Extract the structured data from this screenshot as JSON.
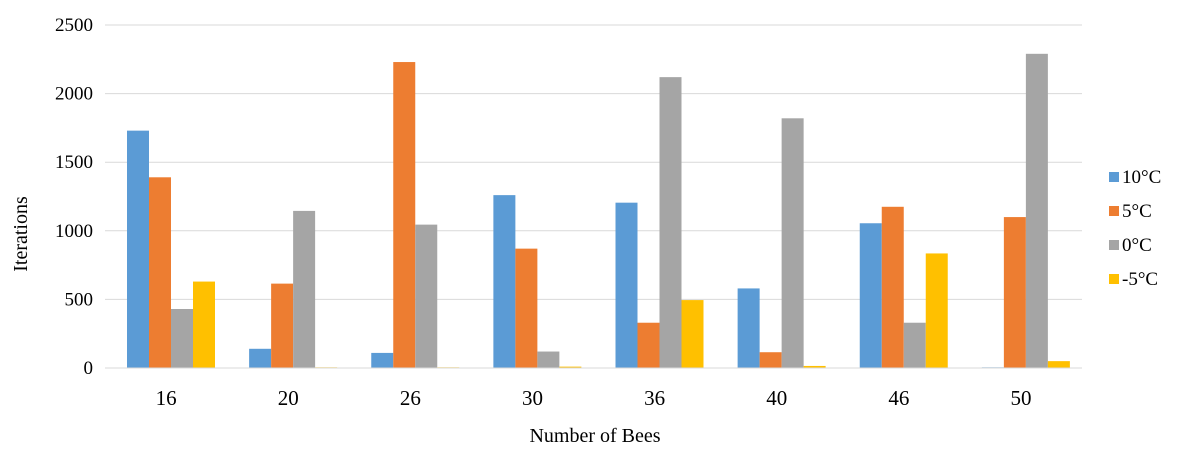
{
  "chart_data": {
    "type": "bar",
    "title": "",
    "xlabel": "Number of Bees",
    "ylabel": "Iterations",
    "categories": [
      "16",
      "20",
      "26",
      "30",
      "36",
      "40",
      "46",
      "50"
    ],
    "ylim": [
      0,
      2500
    ],
    "yticks": [
      0,
      500,
      1000,
      1500,
      2000,
      2500
    ],
    "grid": true,
    "legend_position": "right",
    "series": [
      {
        "name": "10°C",
        "color": "#5B9BD5",
        "values": [
          1730,
          140,
          110,
          1260,
          1205,
          580,
          1055,
          5
        ]
      },
      {
        "name": "5°C",
        "color": "#ED7D31",
        "values": [
          1390,
          615,
          2230,
          870,
          330,
          115,
          1175,
          1100
        ]
      },
      {
        "name": "0°C",
        "color": "#A5A5A5",
        "values": [
          430,
          1145,
          1045,
          120,
          2120,
          1820,
          330,
          2290
        ]
      },
      {
        "name": "-5°C",
        "color": "#FFC000",
        "values": [
          630,
          5,
          5,
          10,
          495,
          15,
          835,
          50
        ]
      }
    ]
  }
}
